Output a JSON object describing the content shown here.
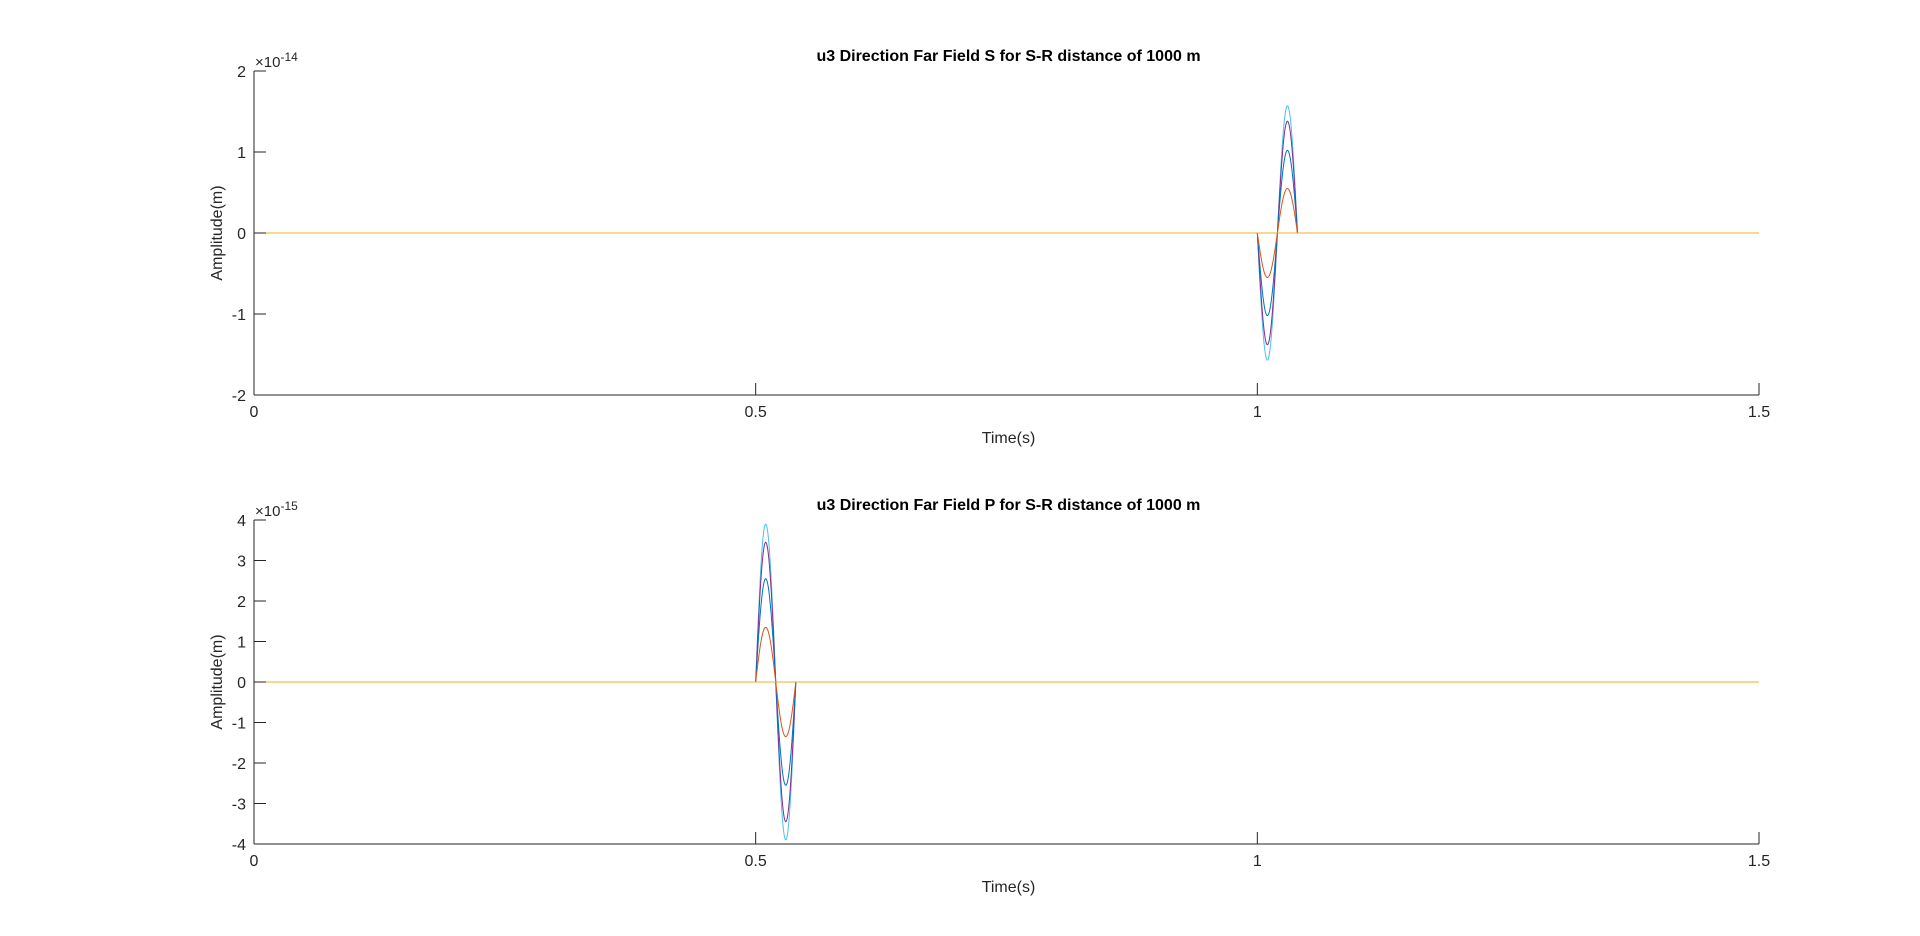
{
  "chart_data": [
    {
      "type": "line",
      "title": "u3 Direction Far Field S for S-R distance of 1000 m",
      "xlabel": "Time(s)",
      "ylabel": "Amplitude(m)",
      "exponent_label": "×10",
      "exponent_power": "-14",
      "xlim": [
        0,
        1.5
      ],
      "ylim": [
        -2,
        2
      ],
      "xticks": [
        0,
        0.5,
        1,
        1.5
      ],
      "xtick_labels": [
        "0",
        "0.5",
        "1",
        "1.5"
      ],
      "yticks": [
        -2,
        -1,
        0,
        1,
        2
      ],
      "ytick_labels": [
        "-2",
        "-1",
        "0",
        "1",
        "2"
      ],
      "grid": false,
      "pulse": {
        "start": 1.0,
        "end": 1.04,
        "shape": "one-cycle sine, negative lobe first"
      },
      "series": [
        {
          "amplitude": 1.57,
          "color": "#4DBEEE"
        },
        {
          "amplitude": 1.38,
          "color": "#7E2F8E"
        },
        {
          "amplitude": 1.02,
          "color": "#0072BD"
        },
        {
          "amplitude": 0.55,
          "color": "#D95319"
        },
        {
          "amplitude": 0.0,
          "color": "#EDB120"
        }
      ]
    },
    {
      "type": "line",
      "title": "u3 Direction Far Field P for S-R distance of 1000 m",
      "xlabel": "Time(s)",
      "ylabel": "Amplitude(m)",
      "exponent_label": "×10",
      "exponent_power": "-15",
      "xlim": [
        0,
        1.5
      ],
      "ylim": [
        -4,
        4
      ],
      "xticks": [
        0,
        0.5,
        1,
        1.5
      ],
      "xtick_labels": [
        "0",
        "0.5",
        "1",
        "1.5"
      ],
      "yticks": [
        -4,
        -3,
        -2,
        -1,
        0,
        1,
        2,
        3,
        4
      ],
      "ytick_labels": [
        "-4",
        "-3",
        "-2",
        "-1",
        "0",
        "1",
        "2",
        "3",
        "4"
      ],
      "grid": false,
      "pulse": {
        "start": 0.5,
        "end": 0.54,
        "shape": "one-cycle sine, positive lobe first"
      },
      "series": [
        {
          "amplitude": 3.9,
          "color": "#4DBEEE"
        },
        {
          "amplitude": 3.45,
          "color": "#7E2F8E"
        },
        {
          "amplitude": 2.55,
          "color": "#0072BD"
        },
        {
          "amplitude": 1.35,
          "color": "#D95319"
        },
        {
          "amplitude": 0.0,
          "color": "#EDB120"
        }
      ]
    }
  ]
}
